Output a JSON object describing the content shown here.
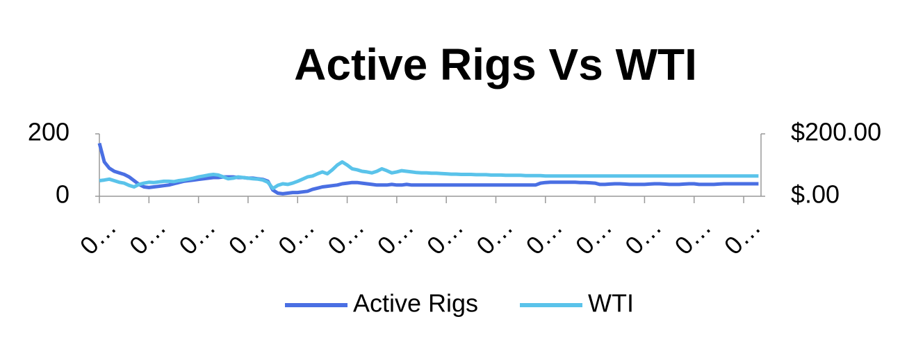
{
  "chart_data": {
    "type": "line",
    "title": "Active Rigs Vs WTI",
    "categories": [
      "0…",
      null,
      null,
      null,
      null,
      null,
      null,
      null,
      null,
      null,
      "0…",
      null,
      null,
      null,
      null,
      null,
      null,
      null,
      null,
      null,
      "0…",
      null,
      null,
      null,
      null,
      null,
      null,
      null,
      null,
      null,
      "0…",
      null,
      null,
      null,
      null,
      null,
      null,
      null,
      null,
      null,
      "0…",
      null,
      null,
      null,
      null,
      null,
      null,
      null,
      null,
      null,
      "0…",
      null,
      null,
      null,
      null,
      null,
      null,
      null,
      null,
      null,
      "0…",
      null,
      null,
      null,
      null,
      null,
      null,
      null,
      null,
      null,
      "0…",
      null,
      null,
      null,
      null,
      null,
      null,
      null,
      null,
      null,
      "0…",
      null,
      null,
      null,
      null,
      null,
      null,
      null,
      null,
      null,
      "0…",
      null,
      null,
      null,
      null,
      null,
      null,
      null,
      null,
      null,
      "0…",
      null,
      null,
      null,
      null,
      null,
      null,
      null,
      null,
      null,
      "0…",
      null,
      null,
      null,
      null,
      null,
      null,
      null,
      null,
      null,
      "0…",
      null,
      null,
      null,
      null,
      null,
      null,
      null,
      null,
      null,
      "0…",
      null,
      null,
      null
    ],
    "series": [
      {
        "name": "Active Rigs",
        "color": "#4a6fe3",
        "values": [
          170,
          110,
          90,
          80,
          75,
          70,
          62,
          50,
          38,
          30,
          28,
          30,
          32,
          34,
          36,
          40,
          44,
          48,
          50,
          52,
          54,
          56,
          58,
          60,
          60,
          62,
          62,
          62,
          60,
          60,
          58,
          58,
          56,
          54,
          48,
          20,
          10,
          8,
          10,
          12,
          12,
          14,
          16,
          22,
          26,
          30,
          32,
          34,
          36,
          40,
          42,
          44,
          44,
          42,
          40,
          38,
          36,
          36,
          36,
          38,
          36,
          36,
          38,
          36,
          36,
          36,
          36,
          36,
          36,
          36,
          36,
          36,
          36,
          36,
          36,
          36,
          36,
          36,
          36,
          36,
          36,
          36,
          36,
          36,
          36,
          36,
          36,
          36,
          36,
          42,
          44,
          45,
          45,
          45,
          45,
          45,
          45,
          44,
          44,
          43,
          42,
          38,
          38,
          39,
          40,
          40,
          39,
          38,
          38,
          38,
          38,
          39,
          40,
          40,
          39,
          38,
          38,
          38,
          39,
          40,
          40,
          38,
          38,
          38,
          38,
          39,
          40,
          40,
          40,
          40,
          40,
          40,
          40,
          40
        ]
      },
      {
        "name": "WTI",
        "color": "#5ac3ea",
        "axis": "y2",
        "values": [
          50,
          52,
          55,
          50,
          45,
          42,
          35,
          30,
          38,
          42,
          45,
          44,
          46,
          48,
          48,
          47,
          50,
          52,
          55,
          58,
          62,
          65,
          68,
          70,
          68,
          62,
          56,
          58,
          62,
          60,
          58,
          56,
          55,
          52,
          45,
          25,
          35,
          40,
          38,
          42,
          48,
          55,
          62,
          65,
          72,
          78,
          72,
          85,
          100,
          110,
          100,
          88,
          85,
          80,
          78,
          75,
          80,
          88,
          82,
          75,
          78,
          82,
          80,
          78,
          76,
          75,
          75,
          74,
          74,
          73,
          72,
          71,
          71,
          70,
          70,
          70,
          69,
          69,
          69,
          68,
          68,
          68,
          67,
          67,
          67,
          67,
          66,
          66,
          66,
          66,
          65,
          65,
          65,
          65,
          65,
          65,
          65,
          65,
          65,
          65,
          65,
          65,
          65,
          65,
          65,
          65,
          65,
          65,
          65,
          65,
          65,
          65,
          65,
          65,
          65,
          65,
          65,
          65,
          65,
          65,
          65,
          65,
          65,
          65,
          65,
          65,
          65,
          65,
          65,
          65,
          65,
          65,
          65,
          65
        ]
      }
    ],
    "ylim": [
      0,
      200
    ],
    "yticks": [
      0,
      200
    ],
    "y2lim": [
      0,
      200
    ],
    "y2ticks": [
      {
        "value": 0,
        "label": "$.00"
      },
      {
        "value": 200,
        "label": "$200.00"
      }
    ],
    "legend": "bottom"
  }
}
